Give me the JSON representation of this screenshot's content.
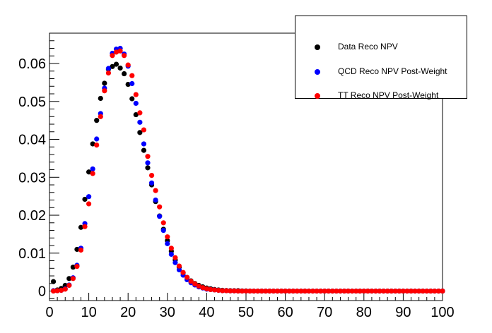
{
  "chart_data": {
    "type": "scatter",
    "title": "",
    "xlabel": "",
    "ylabel": "",
    "xlim": [
      0,
      100
    ],
    "ylim": [
      -0.0025,
      0.068
    ],
    "x_ticks": [
      "0",
      "10",
      "20",
      "30",
      "40",
      "50",
      "60",
      "70",
      "80",
      "90",
      "100"
    ],
    "y_ticks": [
      "0",
      "0.01",
      "0.02",
      "0.03",
      "0.04",
      "0.05",
      "0.06"
    ],
    "grid": false,
    "legend_position": "top-right",
    "x": [
      1,
      2,
      3,
      4,
      5,
      6,
      7,
      8,
      9,
      10,
      11,
      12,
      13,
      14,
      15,
      16,
      17,
      18,
      19,
      20,
      21,
      22,
      23,
      24,
      25,
      26,
      27,
      28,
      29,
      30,
      31,
      32,
      33,
      34,
      35,
      36,
      37,
      38,
      39,
      40,
      41,
      42,
      43,
      44,
      45,
      46,
      47,
      48,
      49,
      50,
      51,
      52,
      53,
      54,
      55,
      56,
      57,
      58,
      59,
      60,
      61,
      62,
      63,
      64,
      65,
      66,
      67,
      68,
      69,
      70,
      71,
      72,
      73,
      74,
      75,
      76,
      77,
      78,
      79,
      80,
      81,
      82,
      83,
      84,
      85,
      86,
      87,
      88,
      89,
      90,
      91,
      92,
      93,
      94,
      95,
      96,
      97,
      98,
      99,
      100
    ],
    "series": [
      {
        "name": "Data Reco NPV",
        "color": "#000000",
        "values": [
          0.0025,
          0.0003,
          0.0007,
          0.0015,
          0.0033,
          0.0063,
          0.011,
          0.0168,
          0.0242,
          0.0314,
          0.0388,
          0.045,
          0.0508,
          0.0548,
          0.0585,
          0.0592,
          0.0598,
          0.0588,
          0.0573,
          0.0545,
          0.0507,
          0.0465,
          0.0418,
          0.0371,
          0.0325,
          0.028,
          0.0236,
          0.0198,
          0.0163,
          0.0133,
          0.0105,
          0.0082,
          0.0063,
          0.0048,
          0.0036,
          0.0027,
          0.002,
          0.0015,
          0.0011,
          0.0008,
          0.0006,
          0.0004,
          0.0003,
          0.0002,
          0.00015,
          0.0001,
          0.0001,
          0.0001,
          5e-05,
          5e-05,
          0,
          0,
          0,
          0,
          0,
          0,
          0,
          0,
          0,
          0,
          0,
          0,
          0,
          0,
          0,
          0,
          0,
          0,
          0,
          0,
          0,
          0,
          0,
          0,
          0,
          0,
          0,
          0,
          0,
          0,
          0,
          0,
          0,
          0,
          0,
          0,
          0,
          0,
          0,
          0,
          0,
          0,
          0,
          0,
          0,
          0,
          0,
          0,
          0,
          0
        ]
      },
      {
        "name": "QCD Reco NPV Post-Weight",
        "color": "#0000ff",
        "values": [
          0.0001,
          0.0001,
          0.0002,
          0.0006,
          0.0016,
          0.0035,
          0.0068,
          0.0113,
          0.0178,
          0.0249,
          0.0322,
          0.0401,
          0.0468,
          0.0535,
          0.0587,
          0.0627,
          0.0638,
          0.064,
          0.0625,
          0.0593,
          0.0547,
          0.0495,
          0.0445,
          0.0388,
          0.0338,
          0.0285,
          0.024,
          0.0197,
          0.016,
          0.0125,
          0.0097,
          0.0075,
          0.0056,
          0.0042,
          0.003,
          0.0022,
          0.0016,
          0.0011,
          0.0008,
          0.0005,
          0.0004,
          0.0003,
          0.0002,
          0.0001,
          0.0001,
          5e-05,
          5e-05,
          0,
          0,
          0,
          0,
          0,
          0,
          0,
          0,
          0,
          0,
          0,
          0,
          0,
          0,
          0,
          0,
          0,
          0,
          0,
          0,
          0,
          0,
          0,
          0,
          0,
          0,
          0,
          0,
          0,
          0,
          0,
          0,
          0,
          0,
          0,
          0,
          0,
          0,
          0,
          0,
          0,
          0,
          0,
          0,
          0,
          0,
          0,
          0,
          0,
          0,
          0,
          0,
          0
        ]
      },
      {
        "name": "TT Reco NPV Post-Weight",
        "color": "#ff0000",
        "values": [
          0.0,
          0.0001,
          0.0002,
          0.0005,
          0.0015,
          0.0033,
          0.0065,
          0.0108,
          0.017,
          0.023,
          0.031,
          0.0385,
          0.046,
          0.0528,
          0.0575,
          0.0621,
          0.063,
          0.0633,
          0.0621,
          0.0596,
          0.0568,
          0.0518,
          0.047,
          0.0425,
          0.0355,
          0.0305,
          0.0265,
          0.0222,
          0.018,
          0.0143,
          0.0113,
          0.0088,
          0.0066,
          0.0049,
          0.0036,
          0.0026,
          0.0019,
          0.0013,
          0.0009,
          0.0006,
          0.0004,
          0.0003,
          0.0002,
          0.0001,
          0.0001,
          5e-05,
          5e-05,
          0,
          0,
          0,
          0,
          0,
          0,
          0,
          0,
          0,
          0,
          0,
          0,
          0,
          0,
          0,
          0,
          0,
          0,
          0,
          0,
          0,
          0,
          0,
          0,
          0,
          0,
          0,
          0,
          0,
          0,
          0,
          0,
          0,
          0,
          0,
          0,
          0,
          0,
          0,
          0,
          0,
          0,
          0,
          0,
          0,
          0,
          0,
          0,
          0,
          0,
          0,
          0,
          0
        ]
      }
    ]
  }
}
